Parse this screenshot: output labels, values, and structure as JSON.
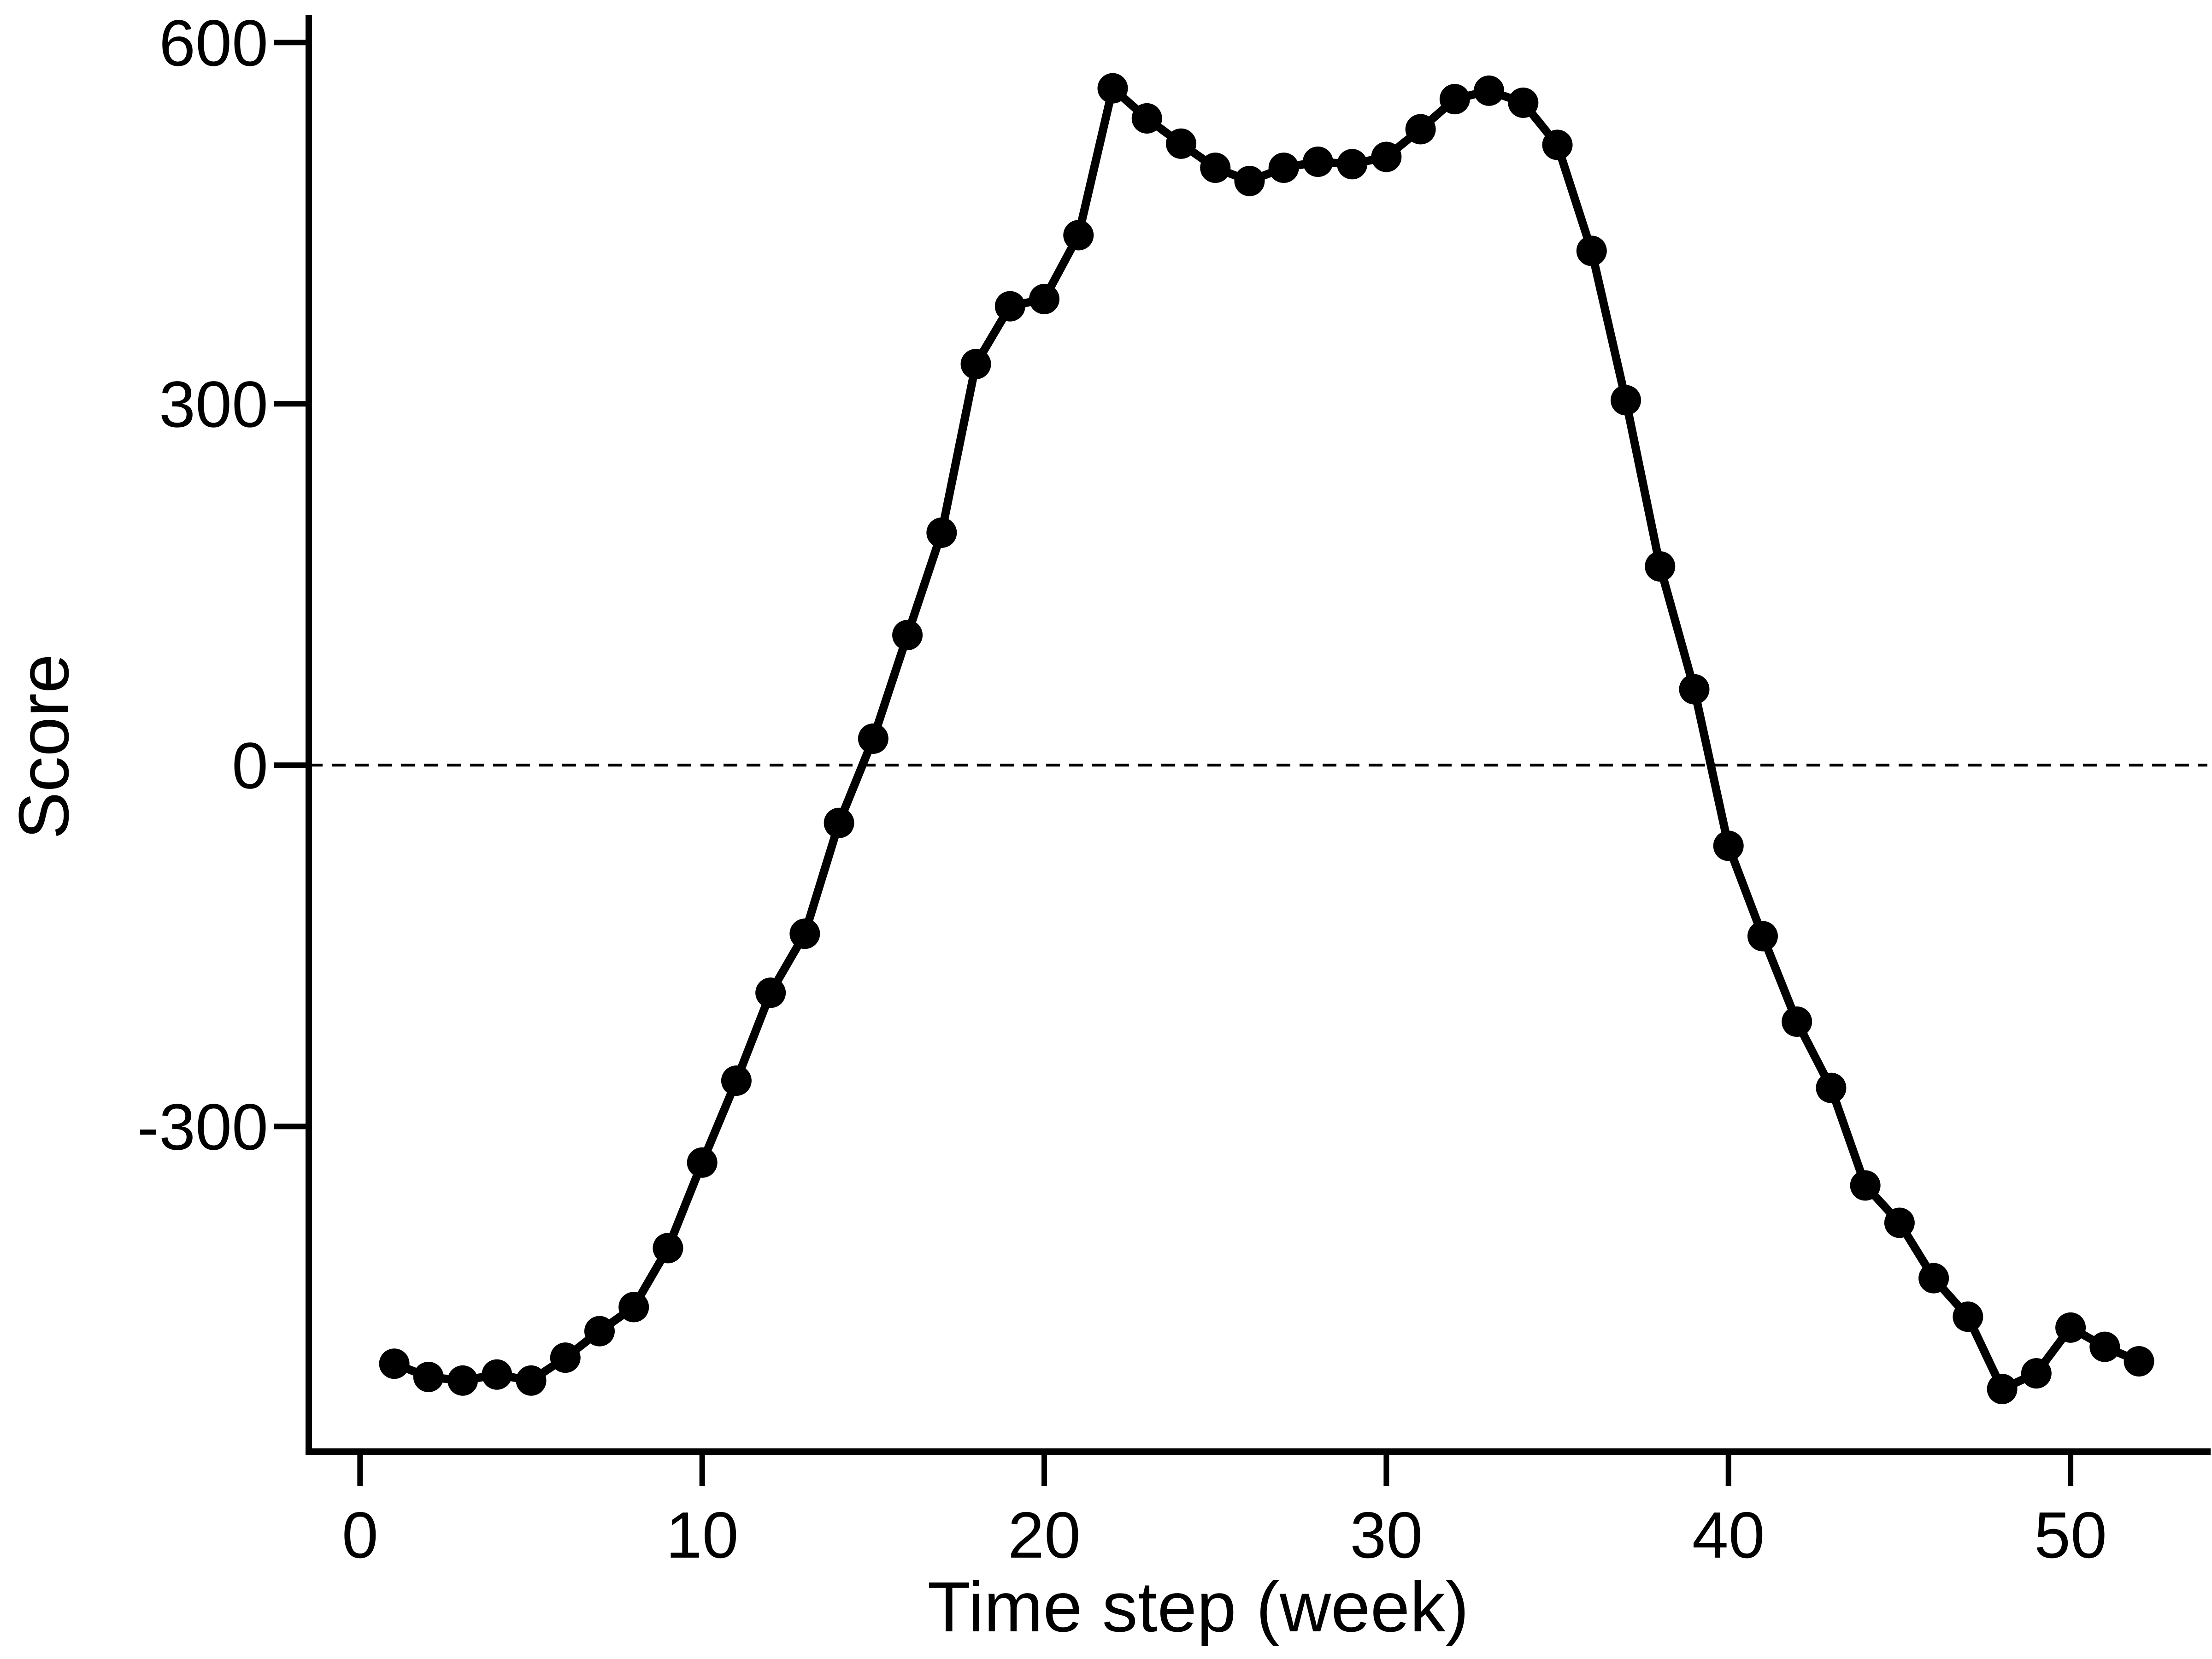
{
  "chart_data": {
    "type": "line",
    "title": "",
    "xlabel": "Time step (week)",
    "ylabel": "Score",
    "xlim": [
      -1.5,
      54
    ],
    "ylim": [
      -570,
      620
    ],
    "x_ticks": [
      0,
      10,
      20,
      30,
      40,
      50
    ],
    "x_tick_labels": [
      "0",
      "10",
      "20",
      "30",
      "40",
      "50"
    ],
    "y_ticks": [
      -300,
      0,
      300,
      600
    ],
    "y_tick_labels": [
      "-300",
      "0",
      "300",
      "600"
    ],
    "reference_line": {
      "y": 0,
      "style": "dashed"
    },
    "grid": false,
    "legend": "none",
    "series": [
      {
        "marker": "circle",
        "color": "#000000",
        "x": [
          1,
          2,
          3,
          4,
          5,
          6,
          7,
          8,
          9,
          10,
          11,
          12,
          13,
          14,
          15,
          16,
          17,
          18,
          19,
          20,
          21,
          22,
          23,
          24,
          25,
          26,
          27,
          28,
          29,
          30,
          31,
          32,
          33,
          34,
          35,
          36,
          37,
          38,
          39,
          40,
          41,
          42,
          43,
          44,
          45,
          46,
          47,
          48,
          49,
          50,
          51,
          52
        ],
        "values": [
          -497,
          -508,
          -511,
          -506,
          -511,
          -492,
          -470,
          -450,
          -401,
          -330,
          -262,
          -189,
          -140,
          -48,
          22,
          108,
          193,
          333,
          381,
          387,
          440,
          562,
          537,
          516,
          496,
          485,
          496,
          501,
          499,
          505,
          528,
          553,
          560,
          550,
          515,
          427,
          303,
          165,
          63,
          -67,
          -142,
          -213,
          -268,
          -349,
          -380,
          -426,
          -458,
          -518,
          -505,
          -467,
          -483,
          -495
        ]
      }
    ]
  }
}
